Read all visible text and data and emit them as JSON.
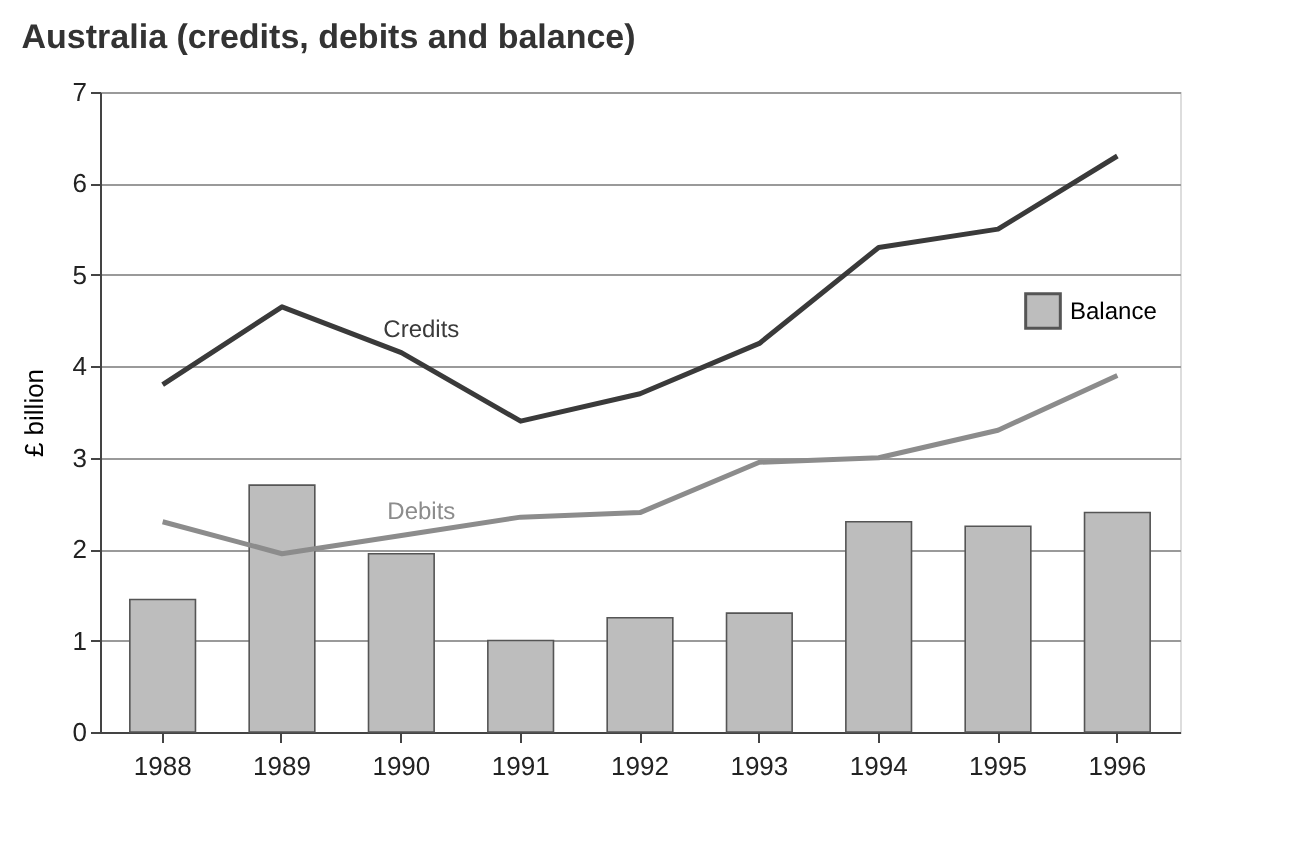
{
  "chart_data": {
    "type": "line",
    "title": "Australia (credits, debits and balance)",
    "ylabel": "£ billion",
    "categories": [
      "1988",
      "1989",
      "1990",
      "1991",
      "1992",
      "1993",
      "1994",
      "1995",
      "1996"
    ],
    "series": [
      {
        "name": "Balance",
        "type": "bar",
        "color": "#bdbdbd",
        "values": [
          1.45,
          2.7,
          1.95,
          1.0,
          1.25,
          1.3,
          2.3,
          2.25,
          2.4
        ]
      },
      {
        "name": "Credits",
        "color": "#3a3a3a",
        "values": [
          3.8,
          4.65,
          4.15,
          3.4,
          3.7,
          4.25,
          5.3,
          5.5,
          6.3
        ]
      },
      {
        "name": "Debits",
        "color": "#8c8c8c",
        "values": [
          2.3,
          1.95,
          2.15,
          2.35,
          2.4,
          2.95,
          3.0,
          3.3,
          3.9
        ]
      }
    ],
    "ylim": [
      0,
      7
    ],
    "yticks": [
      0,
      1,
      2,
      3,
      4,
      5,
      6,
      7
    ],
    "grid": "y",
    "legend": "top right"
  }
}
